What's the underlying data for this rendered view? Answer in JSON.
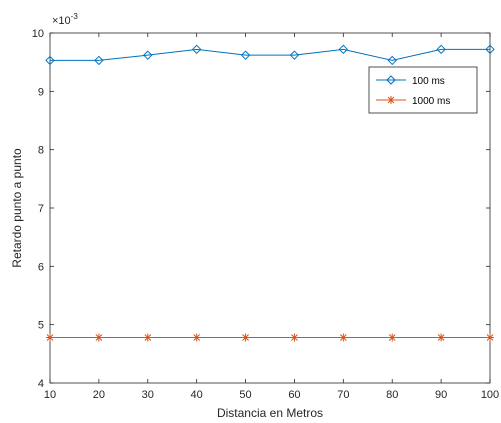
{
  "chart_data": {
    "type": "line",
    "xlabel": "Distancia en Metros",
    "ylabel": "Retardo punto a punto",
    "y_exponent_label": "×10",
    "y_exponent_power": "-3",
    "xlim": [
      10,
      100
    ],
    "ylim": [
      4,
      10
    ],
    "x_ticks": [
      10,
      20,
      30,
      40,
      50,
      60,
      70,
      80,
      90,
      100
    ],
    "y_ticks": [
      4,
      5,
      6,
      7,
      8,
      9,
      10
    ],
    "x": [
      10,
      20,
      30,
      40,
      50,
      60,
      70,
      80,
      90,
      100
    ],
    "series": [
      {
        "name": "100 ms",
        "color": "#0072BD",
        "marker": "diamond",
        "values": [
          9.53,
          9.53,
          9.62,
          9.72,
          9.62,
          9.62,
          9.72,
          9.53,
          9.72,
          9.72
        ]
      },
      {
        "name": "1000 ms",
        "color": "#D95319",
        "marker": "asterisk",
        "values": [
          4.78,
          4.78,
          4.78,
          4.78,
          4.78,
          4.78,
          4.78,
          4.78,
          4.78,
          4.78
        ]
      }
    ],
    "legend_position": "top-right",
    "grid": false
  }
}
